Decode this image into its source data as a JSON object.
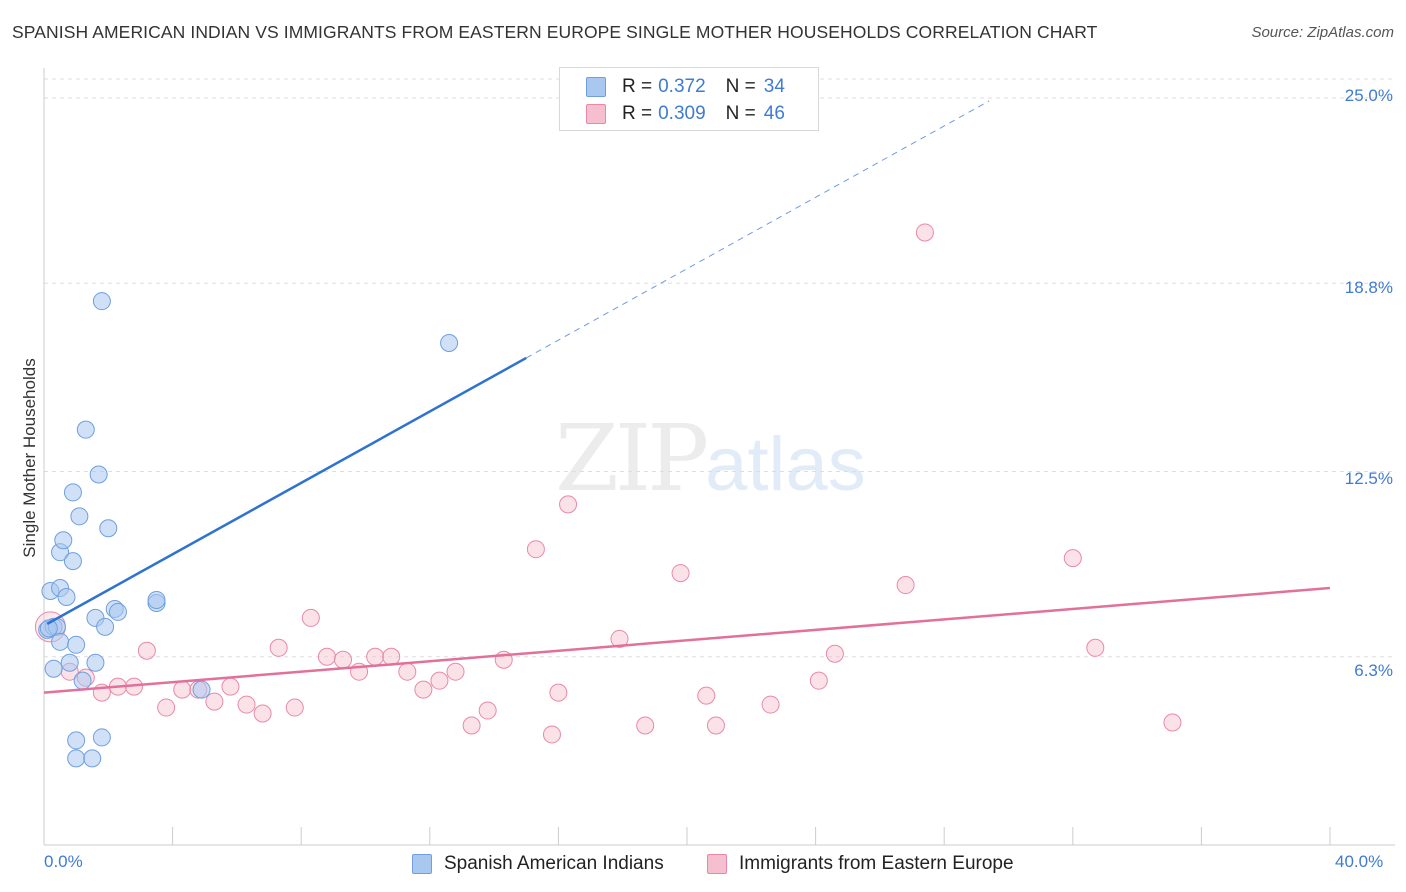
{
  "title": "SPANISH AMERICAN INDIAN VS IMMIGRANTS FROM EASTERN EUROPE SINGLE MOTHER HOUSEHOLDS CORRELATION CHART",
  "source": "Source: ZipAtlas.com",
  "watermark": {
    "zip": "ZIP",
    "atlas": "atlas"
  },
  "legend": {
    "rows": [
      {
        "r_label": "R =",
        "r_value": "0.372",
        "n_label": "N =",
        "n_value": "34"
      },
      {
        "r_label": "R =",
        "r_value": "0.309",
        "n_label": "N =",
        "n_value": "46"
      }
    ]
  },
  "colors": {
    "blue_fill": "#a9c8f0",
    "blue_stroke": "#6f9fde",
    "blue_line": "#2f72d0",
    "pink_fill": "#f6bfcf",
    "pink_stroke": "#e88aa7",
    "pink_line": "#e2709a",
    "grid": "#dddddd",
    "tick_text": "#3f7bd4"
  },
  "chart_data": {
    "type": "scatter",
    "title": "SPANISH AMERICAN INDIAN VS IMMIGRANTS FROM EASTERN EUROPE SINGLE MOTHER HOUSEHOLDS CORRELATION CHART",
    "xlabel": "",
    "ylabel": "Single Mother Households",
    "xlim": [
      0,
      40
    ],
    "ylim": [
      0,
      25.0
    ],
    "y_ticks": [
      6.3,
      12.5,
      18.8,
      25.0
    ],
    "y_tick_labels": [
      "6.3%",
      "12.5%",
      "18.8%",
      "25.0%"
    ],
    "x_tick_labels": [
      "0.0%",
      "40.0%"
    ],
    "series": [
      {
        "name": "Spanish American Indians",
        "r": 0.372,
        "n": 34,
        "trend": {
          "x0": 0.1,
          "y0": 7.4,
          "x1": 15.0,
          "y1": 16.3,
          "dash_to_x": 29.4
        },
        "points": [
          [
            0.1,
            7.2
          ],
          [
            0.2,
            8.5
          ],
          [
            0.3,
            7.3
          ],
          [
            0.3,
            5.9
          ],
          [
            0.4,
            7.3
          ],
          [
            0.5,
            8.6
          ],
          [
            0.5,
            6.8
          ],
          [
            0.5,
            9.8
          ],
          [
            0.6,
            10.2
          ],
          [
            0.7,
            8.3
          ],
          [
            0.8,
            6.1
          ],
          [
            0.9,
            9.5
          ],
          [
            0.9,
            11.8
          ],
          [
            1.0,
            6.7
          ],
          [
            1.0,
            3.5
          ],
          [
            1.0,
            2.9
          ],
          [
            1.1,
            11.0
          ],
          [
            1.2,
            5.5
          ],
          [
            1.3,
            13.9
          ],
          [
            1.5,
            2.9
          ],
          [
            1.6,
            6.1
          ],
          [
            1.6,
            7.6
          ],
          [
            1.7,
            12.4
          ],
          [
            1.8,
            18.2
          ],
          [
            1.8,
            3.6
          ],
          [
            1.9,
            7.3
          ],
          [
            2.0,
            10.6
          ],
          [
            2.2,
            7.9
          ],
          [
            2.3,
            7.8
          ],
          [
            3.5,
            8.1
          ],
          [
            3.5,
            8.2
          ],
          [
            4.9,
            5.2
          ],
          [
            12.6,
            16.8
          ],
          [
            0.15,
            7.25
          ]
        ]
      },
      {
        "name": "Immigrants from Eastern Europe",
        "r": 0.309,
        "n": 46,
        "trend": {
          "x0": 0.0,
          "y0": 5.1,
          "x1": 40.0,
          "y1": 8.6
        },
        "points": [
          [
            0.2,
            7.3
          ],
          [
            0.8,
            5.8
          ],
          [
            1.3,
            5.6
          ],
          [
            1.8,
            5.1
          ],
          [
            2.3,
            5.3
          ],
          [
            2.8,
            5.3
          ],
          [
            3.2,
            6.5
          ],
          [
            3.8,
            4.6
          ],
          [
            4.3,
            5.2
          ],
          [
            4.8,
            5.2
          ],
          [
            5.3,
            4.8
          ],
          [
            5.8,
            5.3
          ],
          [
            6.3,
            4.7
          ],
          [
            6.8,
            4.4
          ],
          [
            7.3,
            6.6
          ],
          [
            7.8,
            4.6
          ],
          [
            8.3,
            7.6
          ],
          [
            8.8,
            6.3
          ],
          [
            9.3,
            6.2
          ],
          [
            9.8,
            5.8
          ],
          [
            10.3,
            6.3
          ],
          [
            10.8,
            6.3
          ],
          [
            11.3,
            5.8
          ],
          [
            11.8,
            5.2
          ],
          [
            12.3,
            5.5
          ],
          [
            12.8,
            5.8
          ],
          [
            13.3,
            4.0
          ],
          [
            13.8,
            4.5
          ],
          [
            14.3,
            6.2
          ],
          [
            15.3,
            9.9
          ],
          [
            15.8,
            3.7
          ],
          [
            16.0,
            5.1
          ],
          [
            16.3,
            11.4
          ],
          [
            17.9,
            6.9
          ],
          [
            18.7,
            4.0
          ],
          [
            19.8,
            9.1
          ],
          [
            20.6,
            5.0
          ],
          [
            20.9,
            4.0
          ],
          [
            22.6,
            4.7
          ],
          [
            24.1,
            5.5
          ],
          [
            24.6,
            6.4
          ],
          [
            26.8,
            8.7
          ],
          [
            27.4,
            20.5
          ],
          [
            32.0,
            9.6
          ],
          [
            32.7,
            6.6
          ],
          [
            35.1,
            4.1
          ]
        ]
      }
    ]
  }
}
